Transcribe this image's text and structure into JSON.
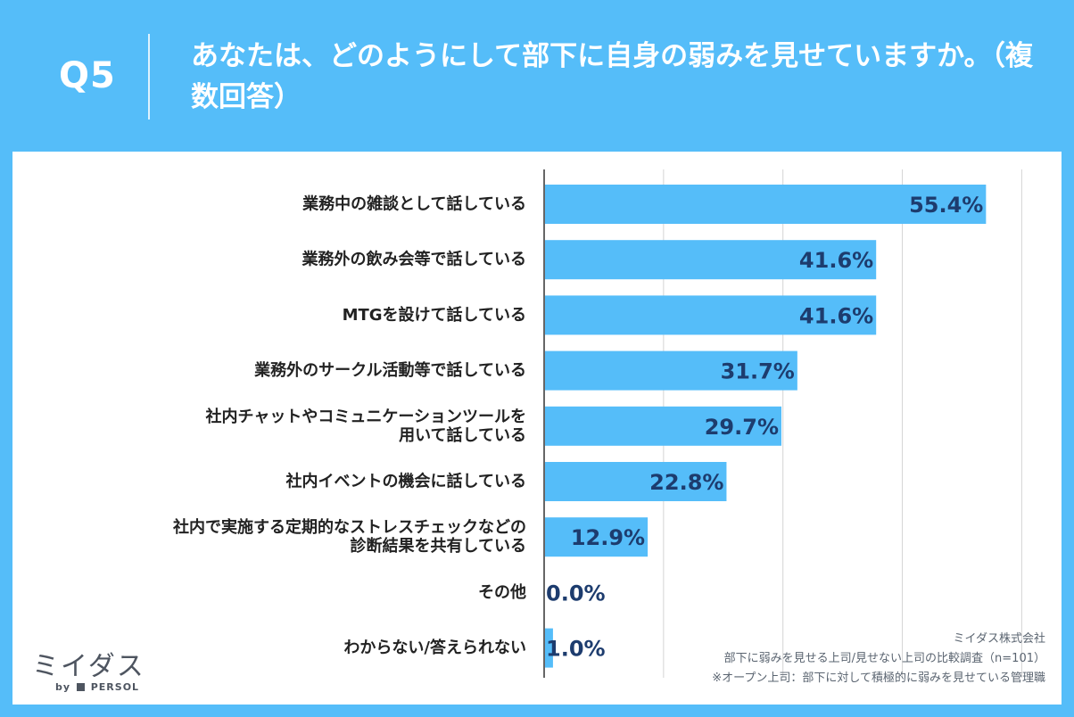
{
  "header": {
    "q_label": "Q5",
    "question": "あなたは、どのようにして部下に自身の弱みを見せていますか。（複数回答）"
  },
  "chart_data": {
    "type": "bar",
    "orientation": "horizontal",
    "categories": [
      [
        "業務中の雑談として話している"
      ],
      [
        "業務外の飲み会等で話している"
      ],
      [
        "MTGを設けて話している"
      ],
      [
        "業務外のサークル活動等で話している"
      ],
      [
        "社内チャットやコミュニケーションツールを",
        "用いて話している"
      ],
      [
        "社内イベントの機会に話している"
      ],
      [
        "社内で実施する定期的なストレスチェックなどの",
        "診断結果を共有している"
      ],
      [
        "その他"
      ],
      [
        "わからない/答えられない"
      ]
    ],
    "values": [
      55.4,
      41.6,
      41.6,
      31.7,
      29.7,
      22.8,
      12.9,
      0.0,
      1.0
    ],
    "value_labels": [
      "55.4%",
      "41.6%",
      "41.6%",
      "31.7%",
      "29.7%",
      "22.8%",
      "12.9%",
      "0.0%",
      "1.0%"
    ],
    "xlim": [
      0,
      65
    ],
    "gridlines": [
      15,
      30,
      45,
      60
    ],
    "bar_color": "#55bdf9",
    "label_color": "#1d3c6e"
  },
  "footer": {
    "company": "ミイダス株式会社",
    "survey": "部下に弱みを見せる上司/見せない上司の比較調査（n=101）",
    "note": "※オープン上司：部下に対して積極的に弱みを見せている管理職"
  },
  "logo": {
    "name": "ミイダス",
    "by": "by",
    "brand": "PERSOL"
  },
  "colors": {
    "background": "#55bdf9",
    "panel": "#ffffff",
    "text": "#222222"
  }
}
